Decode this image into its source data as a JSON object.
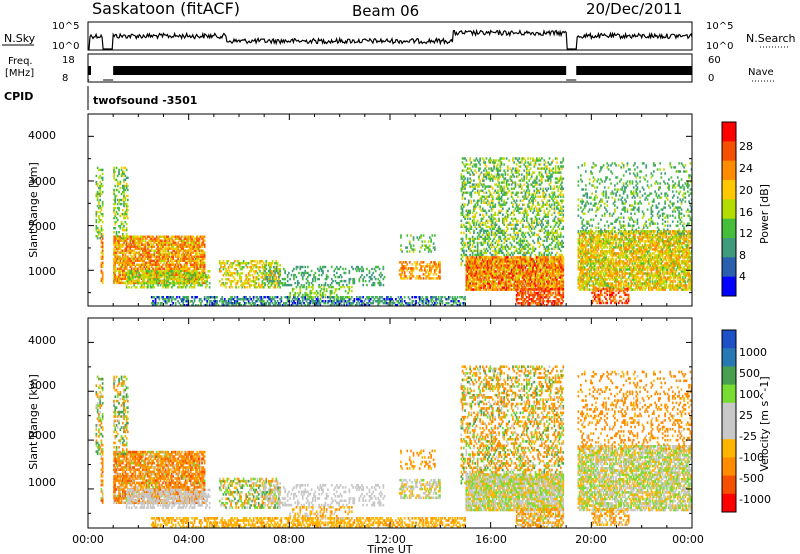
{
  "header": {
    "station": "Saskatoon (fitACF)",
    "beam": "Beam 06",
    "date": "20/Dec/2011"
  },
  "summary": {
    "nsky_label": "N.Sky",
    "nsky_ticks": [
      "10^5",
      "10^0"
    ],
    "nsearch_label": "N.Search",
    "nsearch_ticks": [
      "10^5",
      "10^0"
    ],
    "freq_label": "Freq.",
    "freq_unit": "[MHz]",
    "freq_ticks": [
      "18",
      "8"
    ],
    "nave_label": "Nave",
    "nave_ticks": [
      "60",
      "0"
    ],
    "cpid_label": "CPID",
    "cpid_value": "twofsound -3501",
    "gaps_hours": [
      [
        0.0,
        0.05
      ],
      [
        0.6,
        1.0
      ],
      [
        19.0,
        19.4
      ]
    ]
  },
  "chart_data": [
    {
      "type": "heatmap",
      "panel": "power",
      "ylabel": "Slant Range [km]",
      "ylim": [
        200,
        4500
      ],
      "yticks": [
        "1000",
        "2000",
        "3000",
        "4000"
      ],
      "xlim_hours": [
        0,
        24
      ],
      "colorbar_label": "Power [dB]",
      "colorbar_ticks": [
        "28",
        "24",
        "20",
        "16",
        "12",
        "8",
        "4"
      ],
      "colorbar_colors": [
        "#ff0000",
        "#f55000",
        "#ff8c00",
        "#ffc800",
        "#b4dc00",
        "#46be3c",
        "#409b7d",
        "#2a5fb0",
        "#0000ff"
      ]
    },
    {
      "type": "heatmap",
      "panel": "velocity",
      "ylabel": "Slant Range [km]",
      "ylim": [
        200,
        4500
      ],
      "yticks": [
        "1000",
        "2000",
        "3000",
        "4000"
      ],
      "xlim_hours": [
        0,
        24
      ],
      "xlabel": "Time UT",
      "xticks": [
        "00:00",
        "04:00",
        "08:00",
        "12:00",
        "16:00",
        "20:00",
        "00:00"
      ],
      "colorbar_label": "Velocity [m s^-1]",
      "colorbar_ticks": [
        "1000",
        "500",
        "100",
        "25",
        "-25",
        "-100",
        "-500",
        "-1000"
      ],
      "colorbar_colors": [
        "#1e50c8",
        "#2878b4",
        "#46a050",
        "#78dc32",
        "#c8c8c8",
        "#c8c8c8",
        "#ffb400",
        "#ff8c00",
        "#f55000",
        "#ff0000"
      ]
    }
  ],
  "echo_regions": [
    {
      "t0": 0.5,
      "t1": 4.6,
      "r0": 700,
      "r1": 1750,
      "density": 0.75,
      "pl": 14,
      "ph": 28,
      "vl": -600,
      "vh": 60
    },
    {
      "t0": 0.3,
      "t1": 1.6,
      "r0": 1700,
      "r1": 3300,
      "density": 0.35,
      "pl": 6,
      "ph": 18,
      "vl": -200,
      "vh": 200
    },
    {
      "t0": 1.5,
      "t1": 4.8,
      "r0": 600,
      "r1": 1000,
      "density": 0.45,
      "pl": 8,
      "ph": 18,
      "vl": -20,
      "vh": 20
    },
    {
      "t0": 5.2,
      "t1": 7.6,
      "r0": 600,
      "r1": 1200,
      "density": 0.45,
      "pl": 10,
      "ph": 22,
      "vl": -150,
      "vh": 150
    },
    {
      "t0": 7.0,
      "t1": 11.8,
      "r0": 650,
      "r1": 1100,
      "density": 0.25,
      "pl": 4,
      "ph": 10,
      "vl": -20,
      "vh": 20
    },
    {
      "t0": 2.5,
      "t1": 15.0,
      "r0": 200,
      "r1": 420,
      "density": 0.5,
      "pl": 2,
      "ph": 10,
      "vl": -120,
      "vh": -25
    },
    {
      "t0": 8.0,
      "t1": 10.5,
      "r0": 380,
      "r1": 650,
      "density": 0.35,
      "pl": 8,
      "ph": 14,
      "vl": -120,
      "vh": 20
    },
    {
      "t0": 12.3,
      "t1": 14.0,
      "r0": 800,
      "r1": 1200,
      "density": 0.45,
      "pl": 16,
      "ph": 26,
      "vl": -50,
      "vh": 40
    },
    {
      "t0": 12.4,
      "t1": 13.8,
      "r0": 1400,
      "r1": 1800,
      "density": 0.2,
      "pl": 6,
      "ph": 14,
      "vl": -300,
      "vh": 0
    },
    {
      "t0": 14.8,
      "t1": 18.9,
      "r0": 1100,
      "r1": 3500,
      "density": 0.35,
      "pl": 4,
      "ph": 18,
      "vl": -300,
      "vh": 150
    },
    {
      "t0": 15.0,
      "t1": 18.9,
      "r0": 550,
      "r1": 1300,
      "density": 0.85,
      "pl": 14,
      "ph": 30,
      "vl": -60,
      "vh": 60
    },
    {
      "t0": 17.0,
      "t1": 18.9,
      "r0": 200,
      "r1": 600,
      "density": 0.6,
      "pl": 22,
      "ph": 30,
      "vl": -200,
      "vh": 40
    },
    {
      "t0": 19.4,
      "t1": 24.0,
      "r0": 550,
      "r1": 1900,
      "density": 0.7,
      "pl": 10,
      "ph": 24,
      "vl": -60,
      "vh": 60
    },
    {
      "t0": 19.4,
      "t1": 24.0,
      "r0": 1800,
      "r1": 3400,
      "density": 0.18,
      "pl": 4,
      "ph": 14,
      "vl": -500,
      "vh": 0
    },
    {
      "t0": 20.0,
      "t1": 21.5,
      "r0": 250,
      "r1": 600,
      "density": 0.4,
      "pl": 20,
      "ph": 30,
      "vl": -200,
      "vh": 20
    }
  ]
}
